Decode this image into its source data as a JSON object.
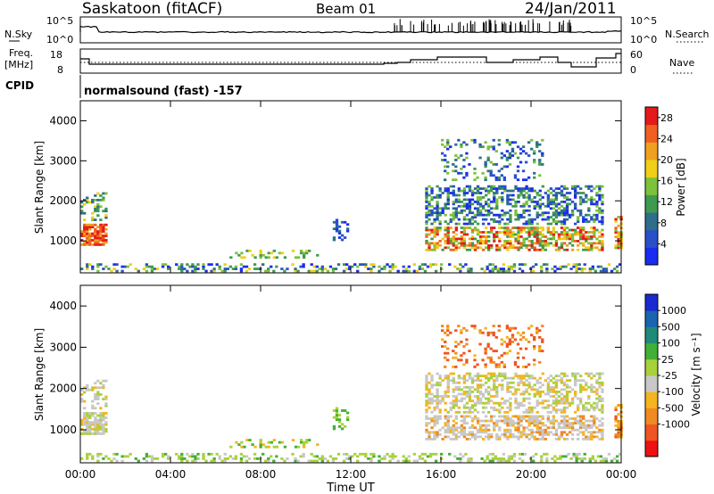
{
  "header": {
    "title": "Saskatoon (fitACF)",
    "beam": "Beam 01",
    "date": "24/Jan/2011"
  },
  "noise_panel": {
    "left_label": "N.Sky",
    "right_label": "N.Search",
    "left_ticks": [
      "10^5",
      "10^0"
    ],
    "right_ticks": [
      "10^5",
      "10^0"
    ]
  },
  "freq_panel": {
    "left_label_1": "Freq.",
    "left_label_2": "[MHz]",
    "left_ticks": [
      "18",
      "8"
    ],
    "right_label": "Nave",
    "right_ticks": [
      "60",
      "0"
    ]
  },
  "cpid_panel": {
    "label": "CPID",
    "text": "normalsound (fast) -157"
  },
  "colors": {
    "power_scale": [
      "#1a2cf0",
      "#2a50c8",
      "#2f6e8a",
      "#3f9a50",
      "#7cc23a",
      "#f0cf17",
      "#f0a020",
      "#ef6020",
      "#e41a1a"
    ],
    "velocity_scale": [
      "#ee1111",
      "#ef5522",
      "#f08a22",
      "#f5b520",
      "#c8c8c8",
      "#a8d23a",
      "#42b036",
      "#1f8a78",
      "#1a64b0",
      "#1a2ad0"
    ]
  },
  "chart_data": [
    {
      "type": "heatmap",
      "name": "power",
      "xlabel": "Time UT",
      "ylabel": "Slant Range [km]",
      "x_ticks": [
        "00:00",
        "04:00",
        "08:00",
        "12:00",
        "16:00",
        "20:00",
        "00:00"
      ],
      "y_ticks": [
        1000,
        2000,
        3000,
        4000
      ],
      "xlim_hours": [
        0,
        24
      ],
      "ylim_km": [
        200,
        4500
      ],
      "colorbar": {
        "label": "Power [dB]",
        "ticks": [
          4,
          8,
          12,
          16,
          20,
          24,
          28
        ],
        "range": [
          0,
          30
        ]
      }
    },
    {
      "type": "heatmap",
      "name": "velocity",
      "xlabel": "Time UT",
      "ylabel": "Slant Range [km]",
      "x_ticks": [
        "00:00",
        "04:00",
        "08:00",
        "12:00",
        "16:00",
        "20:00",
        "00:00"
      ],
      "y_ticks": [
        1000,
        2000,
        3000,
        4000
      ],
      "xlim_hours": [
        0,
        24
      ],
      "ylim_km": [
        200,
        4500
      ],
      "colorbar": {
        "label": "Velocity [m s⁻¹]",
        "ticks": [
          "1000",
          "500",
          "100",
          "25",
          "-25",
          "-100",
          "-500",
          "-1000"
        ]
      }
    }
  ]
}
